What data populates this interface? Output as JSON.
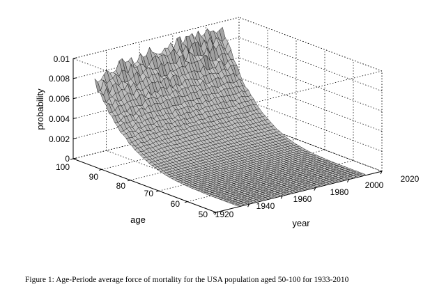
{
  "chart_data": {
    "type": "surface",
    "title": "",
    "xlabel": "year",
    "ylabel": "age",
    "zlabel": "probability",
    "x_range": [
      1920,
      2020
    ],
    "y_range": [
      50,
      100
    ],
    "z_range": [
      0,
      0.01
    ],
    "x_ticks": [
      "1920",
      "1940",
      "1960",
      "1980",
      "2000",
      "2020"
    ],
    "y_ticks": [
      "50",
      "60",
      "70",
      "80",
      "90",
      "100"
    ],
    "z_ticks": [
      "0",
      "0.002",
      "0.004",
      "0.006",
      "0.008",
      "0.01"
    ],
    "data_x_range": [
      1933,
      2010
    ],
    "data_y_range": [
      50,
      100
    ],
    "surface_max_at_age100": [
      {
        "year": 1933,
        "value": 0.0072
      },
      {
        "year": 1950,
        "value": 0.0083
      },
      {
        "year": 1970,
        "value": 0.0088
      },
      {
        "year": 1990,
        "value": 0.0092
      },
      {
        "year": 2010,
        "value": 0.0093
      }
    ],
    "surface_min_at_age50": 0.0001,
    "grid": true,
    "box": true
  },
  "caption": "Figure 1:  Age-Periode average force of mortality for the USA population aged 50-100 for 1933-2010"
}
